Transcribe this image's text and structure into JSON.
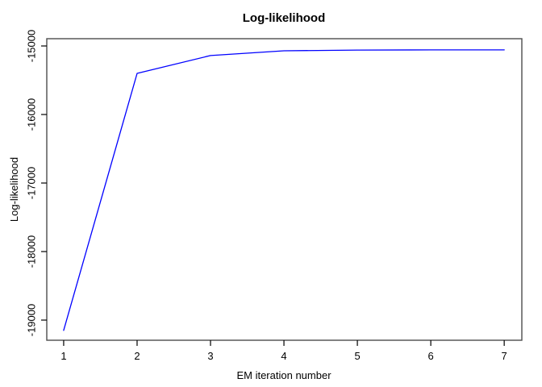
{
  "chart_data": {
    "type": "line",
    "title": "Log-likelihood",
    "xlabel": "EM iteration number",
    "ylabel": "Log-likelihood",
    "x": [
      1,
      2,
      3,
      4,
      5,
      6,
      7
    ],
    "y": [
      -19150,
      -15400,
      -15140,
      -15070,
      -15060,
      -15058,
      -15057
    ],
    "xticks": [
      "1",
      "2",
      "3",
      "4",
      "5",
      "6",
      "7"
    ],
    "yticks": [
      -19000,
      -18000,
      -17000,
      -16000,
      -15000
    ],
    "ytick_labels": [
      "-19000",
      "-18000",
      "-17000",
      "-16000",
      "-15000"
    ],
    "xlim": [
      0.77,
      7.24
    ],
    "ylim": [
      -19294,
      -14894
    ],
    "grid": false,
    "legend": null,
    "line_color": "#0000ff",
    "axis_color": "#000000",
    "box_color": "#4d4d4d",
    "background": "#ffffff"
  }
}
